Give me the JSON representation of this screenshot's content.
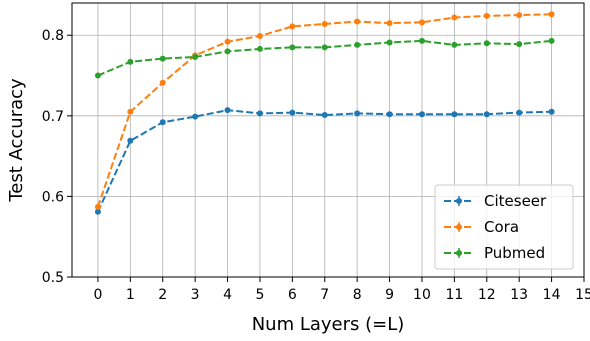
{
  "chart_data": {
    "type": "line",
    "xlabel": "Num Layers (=L)",
    "ylabel": "Test Accuracy",
    "xlim": [
      -0.8,
      15
    ],
    "ylim": [
      0.5,
      0.84
    ],
    "x_ticks": [
      0,
      1,
      2,
      3,
      4,
      5,
      6,
      7,
      8,
      9,
      10,
      11,
      12,
      13,
      14,
      15
    ],
    "y_ticks": [
      0.5,
      0.6,
      0.7,
      0.8
    ],
    "y_tick_labels": [
      "0.5",
      "0.6",
      "0.7",
      "0.8"
    ],
    "grid": true,
    "legend_position": "lower-right",
    "x": [
      0,
      1,
      2,
      3,
      4,
      5,
      6,
      7,
      8,
      9,
      10,
      11,
      12,
      13,
      14
    ],
    "series": [
      {
        "name": "Citeseer",
        "color": "#1f77b4",
        "values": [
          0.581,
          0.669,
          0.692,
          0.699,
          0.707,
          0.703,
          0.704,
          0.701,
          0.703,
          0.702,
          0.702,
          0.702,
          0.702,
          0.704,
          0.705
        ]
      },
      {
        "name": "Cora",
        "color": "#ff7f0e",
        "values": [
          0.587,
          0.705,
          0.741,
          0.775,
          0.792,
          0.799,
          0.811,
          0.814,
          0.817,
          0.815,
          0.816,
          0.822,
          0.824,
          0.825,
          0.826
        ]
      },
      {
        "name": "Pubmed",
        "color": "#2ca02c",
        "values": [
          0.75,
          0.767,
          0.771,
          0.773,
          0.78,
          0.783,
          0.785,
          0.785,
          0.788,
          0.791,
          0.793,
          0.788,
          0.79,
          0.789,
          0.793
        ]
      }
    ]
  }
}
